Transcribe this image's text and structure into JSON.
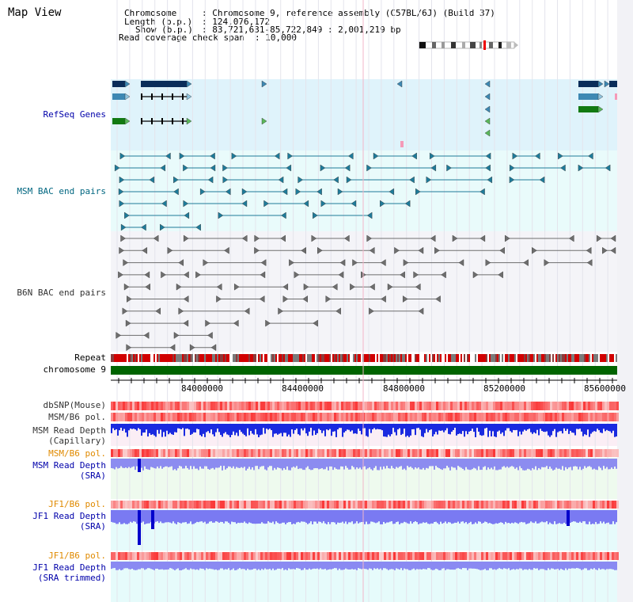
{
  "title": "Map View",
  "info": {
    "chromosome_key": "Chromosome",
    "chromosome_val": ": Chromosome 9, reference assembly (C57BL/6J) (Build 37)",
    "length_key": "Length (b.p.)",
    "length_val": ": 124,076,172",
    "show_key": "Show (b.p.)",
    "show_val": ": 83,721,631-85,722,849 : 2,001,219 bp",
    "read_key": "Read coverage check span",
    "read_val": ": 10,000"
  },
  "tracks": {
    "refseq": "RefSeq Genes",
    "msm_bac": "MSM BAC end pairs",
    "b6n_bac": "B6N BAC end pairs",
    "repeat": "Repeat",
    "chromosome": "chromosome 9",
    "dbsnp": "dbSNP(Mouse)",
    "msm_b6_pol_1": "MSM/B6 pol.",
    "msm_depth_cap_1": "MSM Read Depth",
    "msm_depth_cap_2": "(Capillary)",
    "msm_b6_pol_2": "MSM/B6 pol.",
    "msm_depth_sra_1": "MSM Read Depth",
    "msm_depth_sra_2": "(SRA)",
    "jf1_pol_1": "JF1/B6 pol.",
    "jf1_depth_sra_1": "JF1 Read Depth",
    "jf1_depth_sra_2": "(SRA)",
    "jf1_pol_2": "JF1/B6 pol.",
    "jf1_trim_1": "JF1 Read Depth",
    "jf1_trim_2": "(SRA trimmed)"
  },
  "axis": {
    "ticks": [
      "84000000",
      "84400000",
      "84800000",
      "85200000",
      "85600000"
    ]
  },
  "colors": {
    "refseq_bg": "#dff3fb",
    "msm_bac_bg": "#e9fbfb",
    "b6n_bg": "#f4f4f8",
    "chromosome": "#006400",
    "gene_dark": "#0a2d5a",
    "gene_mid": "#3d88b3",
    "gene_green": "#127a12",
    "msm_bac": "#1e7b9a",
    "b6n_bac": "#6e6e6e",
    "label_default": "#333333",
    "label_blue": "#0000aa",
    "label_teal": "#006680",
    "label_orange": "#e08a00"
  }
}
